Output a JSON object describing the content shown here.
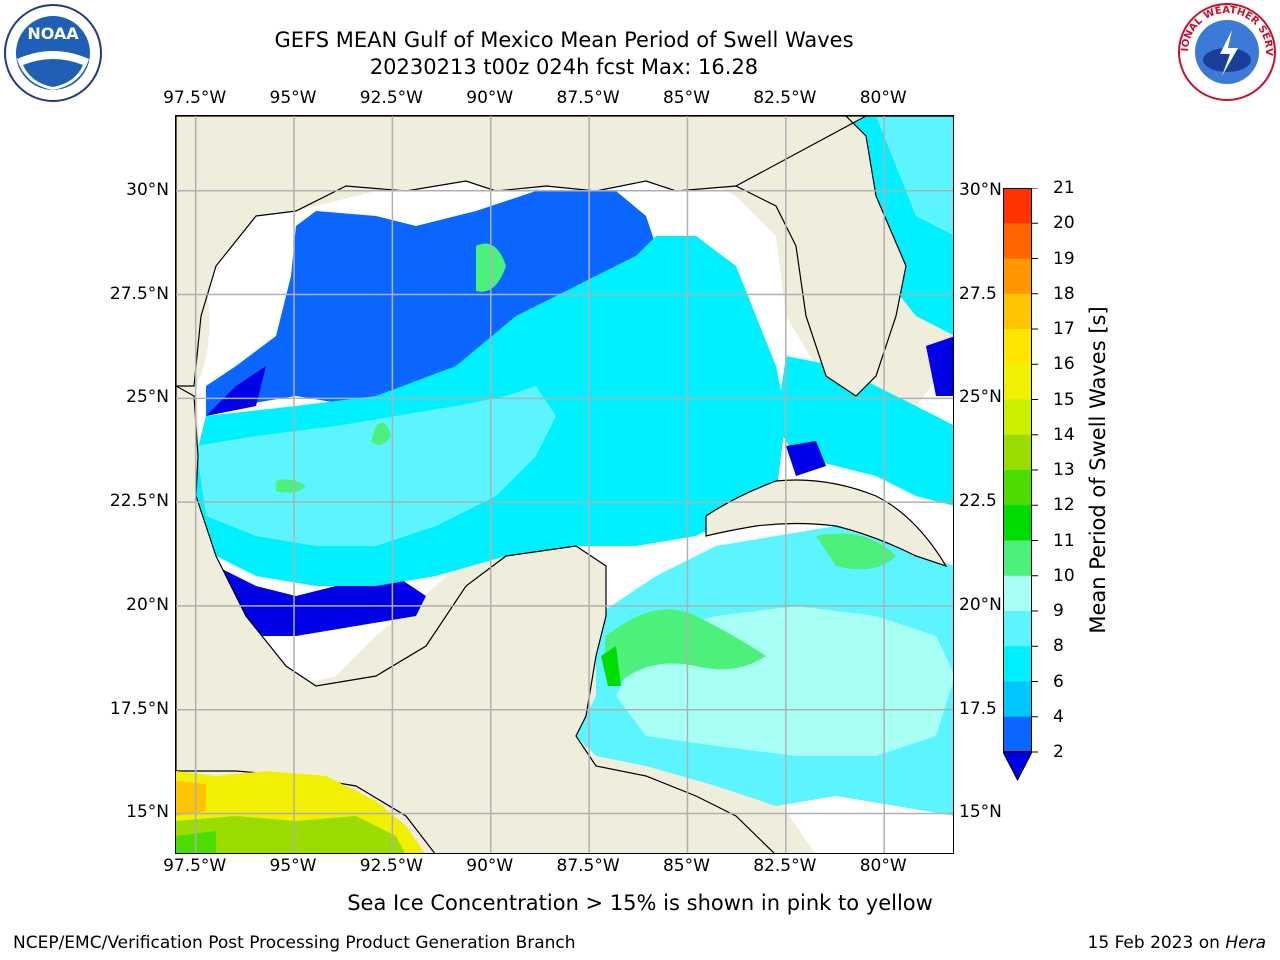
{
  "title": {
    "line1": "GEFS MEAN Gulf of Mexico Mean Period of Swell Waves",
    "line2": "20230213 t00z 024h fcst   Max: 16.28"
  },
  "map": {
    "lon_ticks_top": [
      "97.5°W",
      "95°W",
      "92.5°W",
      "90°W",
      "87.5°W",
      "85°W",
      "82.5°W",
      "80°W"
    ],
    "lon_ticks_bottom": [
      "97.5°W",
      "95°W",
      "92.5°W",
      "90°W",
      "87.5°W",
      "85°W",
      "82.5°W",
      "80°W"
    ],
    "lat_ticks_left": [
      "30°N",
      "27.5°N",
      "25°N",
      "22.5°N",
      "20°N",
      "17.5°N",
      "15°N"
    ],
    "lat_ticks_right": [
      "30°N",
      "27.5",
      "25°N",
      "22.5",
      "20°N",
      "17.5",
      "15°N"
    ],
    "lon_values": [
      -97.5,
      -95,
      -92.5,
      -90,
      -87.5,
      -85,
      -82.5,
      -80
    ],
    "lat_values": [
      30,
      27.5,
      25,
      22.5,
      20,
      17.5,
      15
    ],
    "extent": {
      "lon_min": -98,
      "lon_max": -78.2,
      "lat_min": 14,
      "lat_max": 31.8
    },
    "colors": {
      "land": "#efeddc",
      "nodata": "#ffffff",
      "grid": "#b0b0b0"
    }
  },
  "colorbar": {
    "title": "Mean Period of Swell Waves [s]",
    "labels": [
      "2",
      "4",
      "6",
      "8",
      "9",
      "10",
      "11",
      "12",
      "13",
      "14",
      "15",
      "16",
      "17",
      "18",
      "19",
      "20",
      "21"
    ],
    "colors": [
      "#0a66ff",
      "#00c8ff",
      "#00f0ff",
      "#5cf5ff",
      "#a8fff4",
      "#4cf07a",
      "#00dc00",
      "#4cdc00",
      "#9adc00",
      "#ccf000",
      "#f0f000",
      "#ffe600",
      "#ffc400",
      "#ff9600",
      "#ff6400",
      "#ff3200"
    ],
    "extend_color": "#0000e6"
  },
  "footer": {
    "note": "Sea Ice Concentration > 15% is shown in pink to yellow",
    "credit": "NCEP/EMC/Verification Post Processing Product Generation Branch",
    "date_prefix": "15 Feb 2023 on",
    "date_machine": "Hera"
  },
  "logos": {
    "noaa": "NOAA",
    "nws": "NATIONAL WEATHER SERVICE"
  }
}
